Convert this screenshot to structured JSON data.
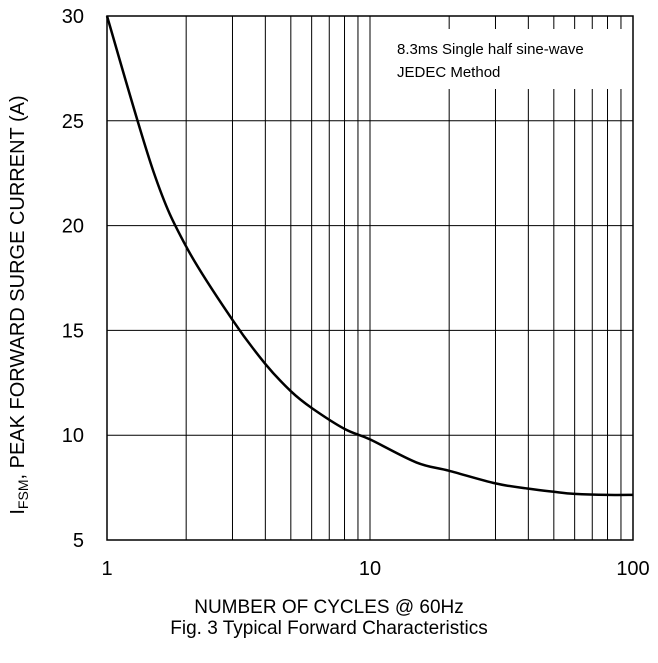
{
  "chart_data": {
    "type": "line",
    "x_scale": "log",
    "xlim": [
      1,
      100
    ],
    "ylim": [
      5,
      30
    ],
    "grid": true,
    "x_ticks": [
      "1",
      "10",
      "100"
    ],
    "y_ticks": [
      "5",
      "10",
      "15",
      "20",
      "25",
      "30"
    ],
    "ylabel_main": "I",
    "ylabel_sub": "FSM",
    "ylabel_rest": ", PEAK FORWARD SURGE CURRENT (A)",
    "xlabel": "NUMBER OF CYCLES @ 60Hz",
    "caption": "Fig. 3  Typical Forward Characteristics",
    "annotation": [
      "8.3ms Single half sine-wave",
      "JEDEC Method"
    ],
    "series": [
      {
        "x": [
          1,
          1.5,
          2,
          3,
          4,
          5,
          6,
          8,
          10,
          15,
          20,
          30,
          40,
          50,
          60,
          80,
          100
        ],
        "y": [
          30,
          22.6,
          19.0,
          15.5,
          13.4,
          12.1,
          11.3,
          10.3,
          9.8,
          8.7,
          8.3,
          7.7,
          7.45,
          7.3,
          7.2,
          7.15,
          7.15
        ]
      }
    ]
  }
}
